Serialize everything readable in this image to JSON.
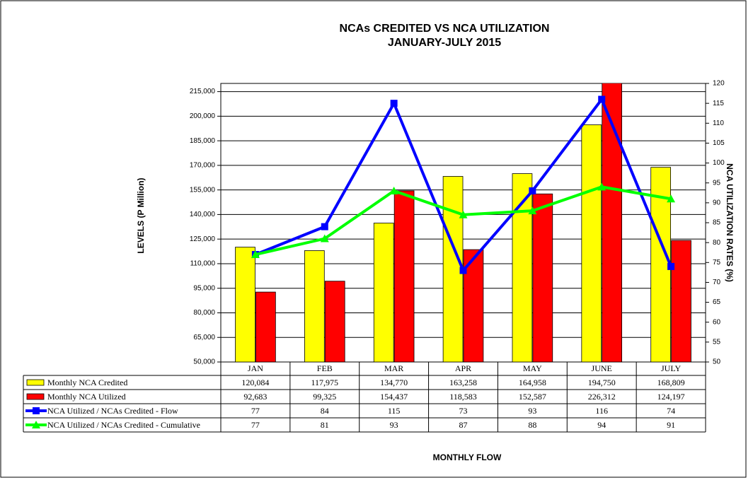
{
  "chart_data": {
    "type": "bar-line-table",
    "title": "NCAs CREDITED VS NCA UTILIZATION",
    "subtitle": "JANUARY-JULY 2015",
    "y_label": "LEVELS (P Million)",
    "y2_label": "NCA UTILIZATION RATES (%)",
    "x_label": "MONTHLY  FLOW",
    "categories": [
      "JAN",
      "FEB",
      "MAR",
      "APR",
      "MAY",
      "JUNE",
      "JULY"
    ],
    "ylim": [
      50000,
      220000
    ],
    "yticks": [
      {
        "value": 50000,
        "label": "50,000"
      },
      {
        "value": 65000,
        "label": "65,000"
      },
      {
        "value": 80000,
        "label": "80,000"
      },
      {
        "value": 95000,
        "label": "95,000"
      },
      {
        "value": 110000,
        "label": "110,000"
      },
      {
        "value": 125000,
        "label": "125,000"
      },
      {
        "value": 140000,
        "label": "140,000"
      },
      {
        "value": 155000,
        "label": "155,000"
      },
      {
        "value": 170000,
        "label": "170,000"
      },
      {
        "value": 185000,
        "label": "185,000"
      },
      {
        "value": 200000,
        "label": "200,000"
      },
      {
        "value": 215000,
        "label": "215,000"
      }
    ],
    "y2lim": [
      50,
      120
    ],
    "y2ticks": [
      50,
      55,
      60,
      65,
      70,
      75,
      80,
      85,
      90,
      95,
      100,
      105,
      110,
      115,
      120
    ],
    "grid": true,
    "series": [
      {
        "name": "Monthly NCA Credited",
        "type": "bar",
        "color": "#ffff00",
        "values": [
          120084,
          117975,
          134770,
          163258,
          164958,
          194750,
          168809
        ],
        "value_labels": [
          "120,084",
          "117,975",
          "134,770",
          "163,258",
          "164,958",
          "194,750",
          "168,809"
        ]
      },
      {
        "name": "Monthly NCA Utilized",
        "type": "bar",
        "color": "#ff0000",
        "values": [
          92683,
          99325,
          154437,
          118583,
          152587,
          226312,
          124197
        ],
        "value_labels": [
          "92,683",
          "99,325",
          "154,437",
          "118,583",
          "152,587",
          "226,312",
          "124,197"
        ]
      },
      {
        "name": "NCA Utilized / NCAs Credited - Flow",
        "type": "line",
        "marker": "square",
        "axis": "y2",
        "color": "#0000ff",
        "values": [
          77,
          84,
          115,
          73,
          93,
          116,
          74
        ]
      },
      {
        "name": "NCA Utilized / NCAs Credited - Cumulative",
        "type": "line",
        "marker": "triangle",
        "axis": "y2",
        "color": "#00ff00",
        "values": [
          77,
          81,
          93,
          87,
          88,
          94,
          91
        ]
      }
    ]
  }
}
